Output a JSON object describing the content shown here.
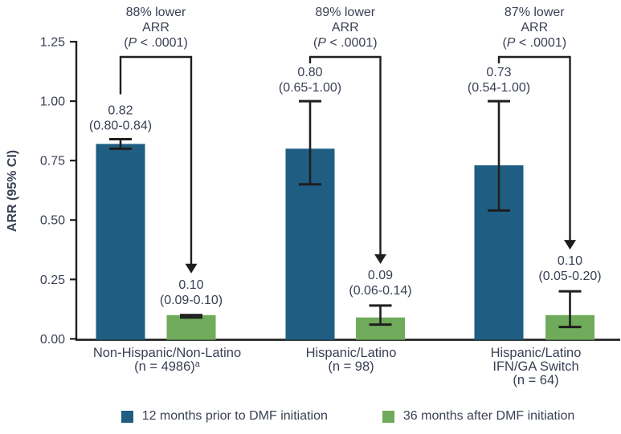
{
  "chart_data": {
    "type": "bar",
    "title": "",
    "ylabel": "ARR (95% CI)",
    "ylim": [
      0,
      1.25
    ],
    "yticks": [
      "0.00",
      "0.25",
      "0.50",
      "0.75",
      "1.00",
      "1.25"
    ],
    "grid": false,
    "legend_position": "bottom",
    "colors": {
      "bar_prior": "#1f5e82",
      "bar_after": "#6fab5b",
      "line": "#1e1e1e",
      "text": "#3a4155"
    },
    "series": [
      {
        "id": "prior",
        "name": "12 months prior to DMF initiation",
        "color": "#1f5e82"
      },
      {
        "id": "after",
        "name": "36 months after DMF initiation",
        "color": "#6fab5b"
      }
    ],
    "groups": [
      {
        "label_lines": [
          "Non-Hispanic/Non-Latino",
          "(n = 4986)"
        ],
        "label_superscript": "a",
        "annotation_line1": "88% lower",
        "annotation_line2": "ARR",
        "p_prefix": "(",
        "p_symbol": "P",
        "p_suffix": " < .0001)",
        "bars": [
          {
            "series": "prior",
            "value": 0.82,
            "ci_low": 0.8,
            "ci_high": 0.84,
            "value_label": "0.82",
            "ci_label": "(0.80-0.84)"
          },
          {
            "series": "after",
            "value": 0.1,
            "ci_low": 0.09,
            "ci_high": 0.1,
            "value_label": "0.10",
            "ci_label": "(0.09-0.10)"
          }
        ]
      },
      {
        "label_lines": [
          "Hispanic/Latino",
          "(n = 98)"
        ],
        "label_superscript": "",
        "annotation_line1": "89% lower",
        "annotation_line2": "ARR",
        "p_prefix": "(",
        "p_symbol": "P",
        "p_suffix": " < .0001)",
        "bars": [
          {
            "series": "prior",
            "value": 0.8,
            "ci_low": 0.65,
            "ci_high": 1.0,
            "value_label": "0.80",
            "ci_label": "(0.65-1.00)"
          },
          {
            "series": "after",
            "value": 0.09,
            "ci_low": 0.06,
            "ci_high": 0.14,
            "value_label": "0.09",
            "ci_label": "(0.06-0.14)"
          }
        ]
      },
      {
        "label_lines": [
          "Hispanic/Latino",
          "IFN/GA Switch",
          "(n = 64)"
        ],
        "label_superscript": "",
        "annotation_line1": "87% lower",
        "annotation_line2": "ARR",
        "p_prefix": "(",
        "p_symbol": "P",
        "p_suffix": " < .0001)",
        "bars": [
          {
            "series": "prior",
            "value": 0.73,
            "ci_low": 0.54,
            "ci_high": 1.0,
            "value_label": "0.73",
            "ci_label": "(0.54-1.00)"
          },
          {
            "series": "after",
            "value": 0.1,
            "ci_low": 0.05,
            "ci_high": 0.2,
            "value_label": "0.10",
            "ci_label": "(0.05-0.20)"
          }
        ]
      }
    ]
  }
}
